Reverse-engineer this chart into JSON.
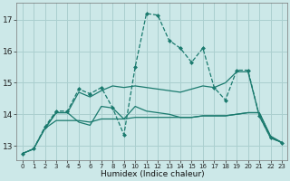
{
  "xlabel": "Humidex (Indice chaleur)",
  "bg_color": "#cce8e8",
  "grid_color": "#aacfcf",
  "line_color": "#1a7a6e",
  "xlim": [
    -0.5,
    23.5
  ],
  "ylim": [
    12.55,
    17.55
  ],
  "yticks": [
    13,
    14,
    15,
    16,
    17
  ],
  "xticks": [
    0,
    1,
    2,
    3,
    4,
    5,
    6,
    7,
    8,
    9,
    10,
    11,
    12,
    13,
    14,
    15,
    16,
    17,
    18,
    19,
    20,
    21,
    22,
    23
  ],
  "lines": [
    {
      "x": [
        0,
        1,
        2,
        3,
        4,
        5,
        6,
        7,
        8,
        9,
        10,
        11,
        12,
        13,
        14,
        15,
        16,
        17,
        18,
        19,
        20,
        21,
        22,
        23
      ],
      "y": [
        12.75,
        12.9,
        13.6,
        14.1,
        14.1,
        14.8,
        14.65,
        14.85,
        14.2,
        13.35,
        15.5,
        17.2,
        17.15,
        16.35,
        16.1,
        15.65,
        16.1,
        14.85,
        14.45,
        15.4,
        15.4,
        13.95,
        13.25,
        13.1
      ],
      "marker": "D",
      "markersize": 2.0,
      "linewidth": 0.9,
      "linestyle": "--"
    },
    {
      "x": [
        0,
        1,
        2,
        3,
        4,
        5,
        6,
        7,
        8,
        9,
        10,
        11,
        12,
        13,
        14,
        15,
        16,
        17,
        18,
        19,
        20,
        21,
        22,
        23
      ],
      "y": [
        12.75,
        12.9,
        13.55,
        13.8,
        13.8,
        13.8,
        13.75,
        13.85,
        13.85,
        13.85,
        13.9,
        13.9,
        13.9,
        13.9,
        13.9,
        13.9,
        13.95,
        13.95,
        13.95,
        14.0,
        14.05,
        14.05,
        13.3,
        13.1
      ],
      "marker": null,
      "linewidth": 0.9,
      "linestyle": "-"
    },
    {
      "x": [
        0,
        1,
        2,
        3,
        4,
        5,
        6,
        7,
        8,
        9,
        10,
        11,
        12,
        13,
        14,
        15,
        16,
        17,
        18,
        19,
        20,
        21,
        22,
        23
      ],
      "y": [
        12.75,
        12.9,
        13.55,
        14.05,
        14.05,
        14.7,
        14.55,
        14.75,
        14.9,
        14.85,
        14.9,
        14.85,
        14.8,
        14.75,
        14.7,
        14.8,
        14.9,
        14.85,
        15.0,
        15.35,
        15.35,
        13.95,
        13.25,
        13.1
      ],
      "marker": null,
      "linewidth": 0.9,
      "linestyle": "-"
    },
    {
      "x": [
        2,
        3,
        4,
        5,
        6,
        7,
        8,
        9,
        10,
        11,
        12,
        13,
        14,
        15,
        16,
        17,
        18,
        19,
        20,
        21,
        22,
        23
      ],
      "y": [
        13.55,
        14.05,
        14.05,
        13.75,
        13.65,
        14.25,
        14.2,
        13.85,
        14.25,
        14.1,
        14.05,
        14.0,
        13.9,
        13.9,
        13.95,
        13.95,
        13.95,
        14.0,
        14.05,
        14.05,
        13.3,
        13.1
      ],
      "marker": null,
      "linewidth": 0.9,
      "linestyle": "-"
    }
  ]
}
